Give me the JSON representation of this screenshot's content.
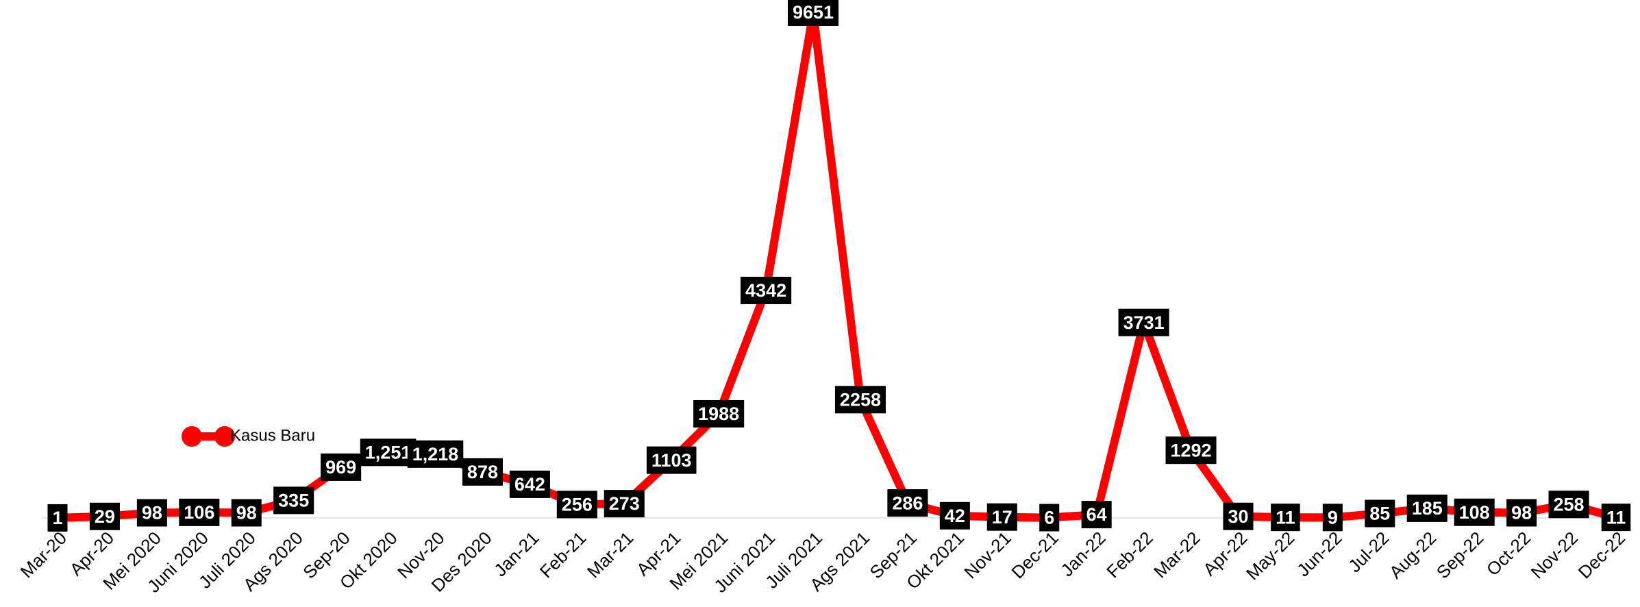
{
  "chart_data": {
    "type": "line",
    "categories": [
      "Mar-20",
      "Apr-20",
      "Mei 2020",
      "Juni 2020",
      "Juli 2020",
      "Ags 2020",
      "Sep-20",
      "Okt 2020",
      "Nov-20",
      "Des 2020",
      "Jan-21",
      "Feb-21",
      "Mar-21",
      "Apr-21",
      "Mei 2021",
      "Juni 2021",
      "Juli 2021",
      "Ags 2021",
      "Sep-21",
      "Okt 2021",
      "Nov-21",
      "Dec-21",
      "Jan-22",
      "Feb-22",
      "Mar-22",
      "Apr-22",
      "May-22",
      "Jun-22",
      "Jul-22",
      "Aug-22",
      "Sep-22",
      "Oct-22",
      "Nov-22",
      "Dec-22"
    ],
    "series": [
      {
        "name": "Kasus Baru",
        "color": "#ff0000",
        "values": [
          1,
          29,
          98,
          106,
          98,
          335,
          969,
          1251,
          1218,
          878,
          642,
          256,
          273,
          1103,
          1988,
          4342,
          9651,
          2258,
          286,
          42,
          17,
          6,
          64,
          3731,
          1292,
          30,
          11,
          9,
          85,
          185,
          108,
          98,
          258,
          11
        ],
        "value_labels": [
          "1",
          "29",
          "98",
          "106",
          "98",
          "335",
          "969",
          "1,251",
          "1,218",
          "878",
          "642",
          "256",
          "273",
          "1103",
          "1988",
          "4342",
          "9651",
          "2258",
          "286",
          "42",
          "17",
          "6",
          "64",
          "3731",
          "1292",
          "30",
          "11",
          "9",
          "85",
          "185",
          "108",
          "98",
          "258",
          "11"
        ]
      }
    ],
    "ylim": [
      0,
      10000
    ],
    "grid": false,
    "legend": "left"
  }
}
